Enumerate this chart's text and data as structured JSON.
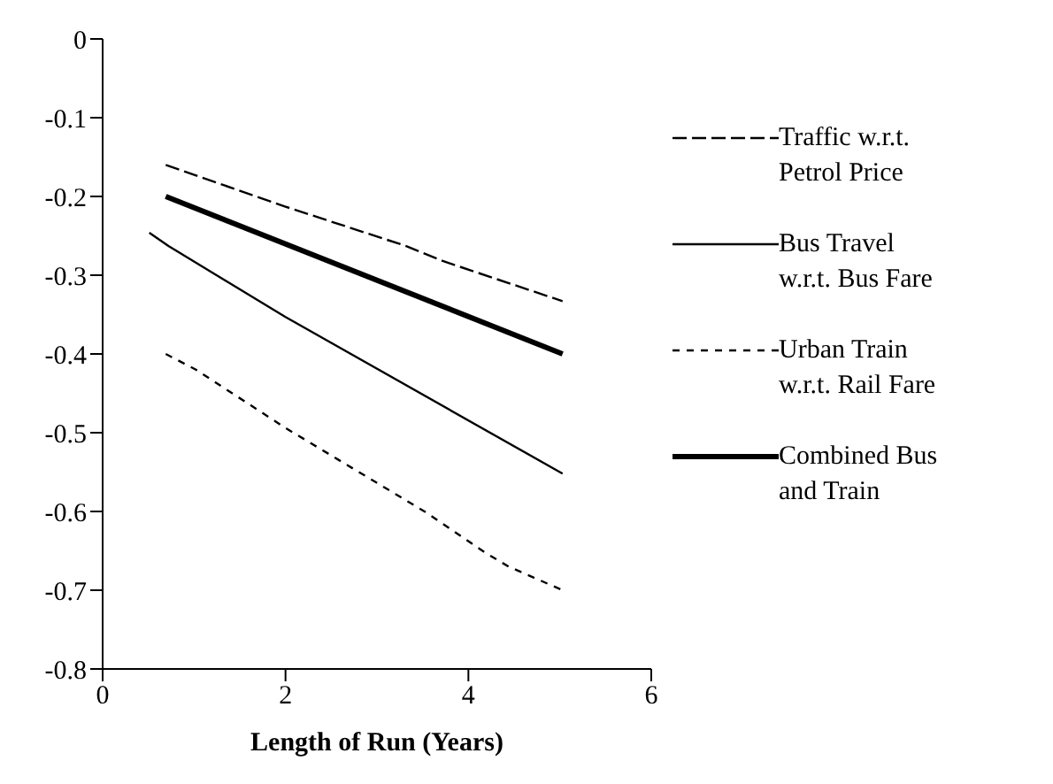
{
  "chart_data": {
    "type": "line",
    "xlabel": "Length of Run (Years)",
    "xlim": [
      0,
      6
    ],
    "xticks": [
      0,
      2,
      4,
      6
    ],
    "ylim": [
      -0.8,
      0
    ],
    "yticks": [
      0,
      -0.1,
      -0.2,
      -0.3,
      -0.4,
      -0.5,
      -0.6,
      -0.7,
      -0.8
    ],
    "grid": false,
    "legend": "right",
    "marker": "none",
    "series": [
      {
        "name": "Traffic w.r.t. Petrol Price",
        "color": "#000000",
        "line_style": "dashed",
        "x": [
          0.69,
          2.0,
          3.32,
          3.72,
          5.03
        ],
        "values": [
          -0.16,
          -0.213,
          -0.263,
          -0.282,
          -0.333
        ]
      },
      {
        "name": "Bus Travel w.r.t. Bus Fare",
        "color": "#000000",
        "line_style": "solid",
        "x": [
          0.51,
          0.72,
          2.0,
          5.03
        ],
        "values": [
          -0.246,
          -0.263,
          -0.353,
          -0.552
        ]
      },
      {
        "name": "Urban Train w.r.t. Rail Fare",
        "color": "#000000",
        "line_style": "dotted",
        "x": [
          0.69,
          1.02,
          1.22,
          2.0,
          3.52,
          4.18,
          4.44,
          5.03
        ],
        "values": [
          -0.4,
          -0.42,
          -0.435,
          -0.494,
          -0.6,
          -0.652,
          -0.67,
          -0.7
        ]
      },
      {
        "name": "Combined Bus and Train",
        "color": "#000000",
        "line_style": "solid",
        "x": [
          0.69,
          5.03
        ],
        "values": [
          -0.2,
          -0.4
        ]
      }
    ]
  }
}
